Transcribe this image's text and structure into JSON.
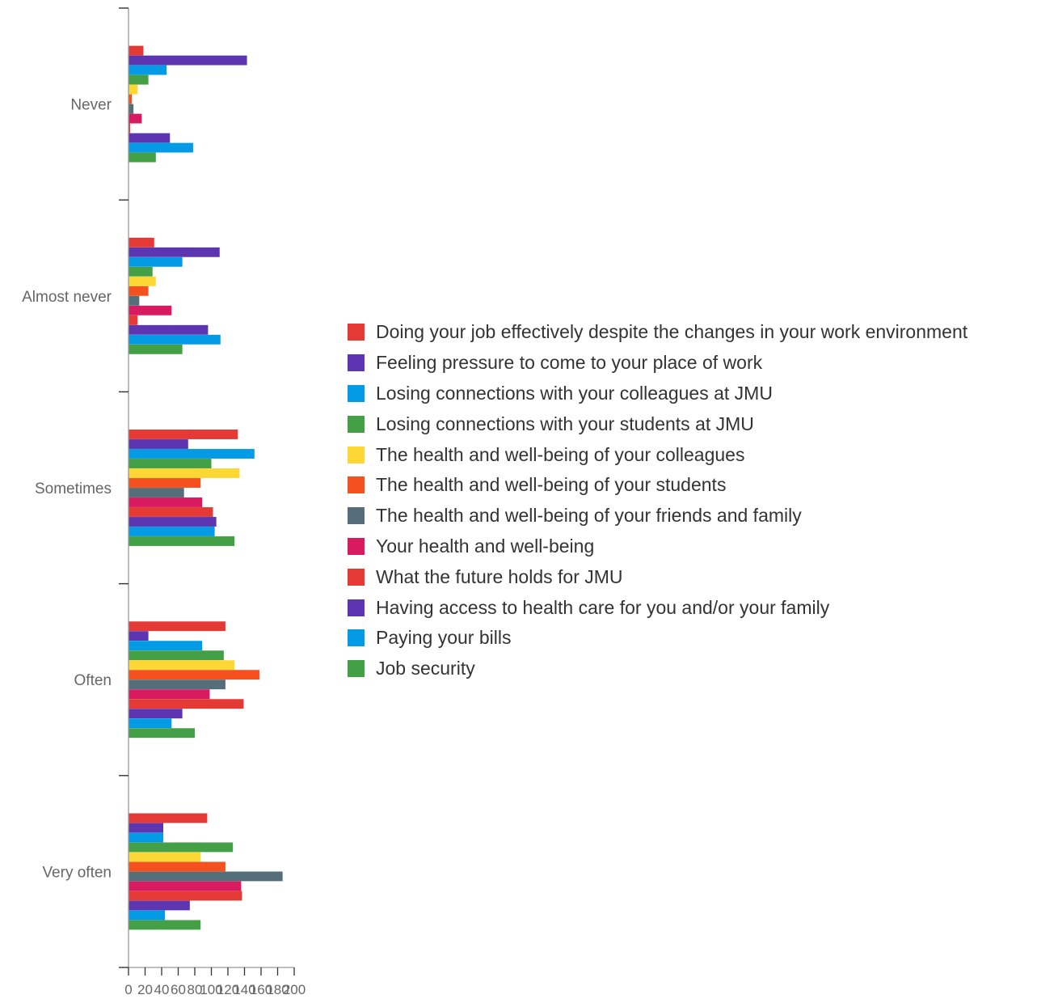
{
  "chart_data": {
    "type": "bar",
    "orientation": "horizontal",
    "categories": [
      "Never",
      "Almost never",
      "Sometimes",
      "Often",
      "Very often"
    ],
    "xlim": [
      0,
      200
    ],
    "x_ticks": [
      "0",
      "20",
      "40",
      "60",
      "80",
      "100",
      "120",
      "140",
      "160",
      "180",
      "200"
    ],
    "legend_position": "right",
    "series": [
      {
        "name": "Doing your job effectively despite the changes in your work environment",
        "color": "#e53935",
        "values": [
          18,
          31,
          132,
          117,
          95
        ]
      },
      {
        "name": "Feeling pressure to come to your place of work",
        "color": "#5e35b1",
        "values": [
          143,
          110,
          72,
          24,
          42
        ]
      },
      {
        "name": "Losing connections with your colleagues at JMU",
        "color": "#039be5",
        "values": [
          46,
          65,
          152,
          89,
          42
        ]
      },
      {
        "name": "Losing connections with your students at JMU",
        "color": "#43a047",
        "values": [
          24,
          29,
          100,
          115,
          126
        ]
      },
      {
        "name": "The health and well-being of your colleagues",
        "color": "#fdd835",
        "values": [
          11,
          33,
          134,
          128,
          87
        ]
      },
      {
        "name": "The health and well-being of your students",
        "color": "#f4511e",
        "values": [
          4,
          24,
          87,
          158,
          117
        ]
      },
      {
        "name": "The health and well-being of your friends and family",
        "color": "#546e7a",
        "values": [
          6,
          13,
          67,
          117,
          186
        ]
      },
      {
        "name": "Your health and well-being",
        "color": "#d81b60",
        "values": [
          16,
          52,
          89,
          98,
          136
        ]
      },
      {
        "name": "What the future holds for JMU",
        "color": "#e53935",
        "values": [
          2,
          11,
          102,
          139,
          137
        ]
      },
      {
        "name": "Having access to health care for you and/or your family",
        "color": "#5e35b1",
        "values": [
          50,
          96,
          106,
          65,
          74
        ]
      },
      {
        "name": "Paying your bills",
        "color": "#039be5",
        "values": [
          78,
          111,
          104,
          52,
          44
        ]
      },
      {
        "name": "Job security",
        "color": "#43a047",
        "values": [
          33,
          65,
          128,
          80,
          87
        ]
      }
    ]
  }
}
